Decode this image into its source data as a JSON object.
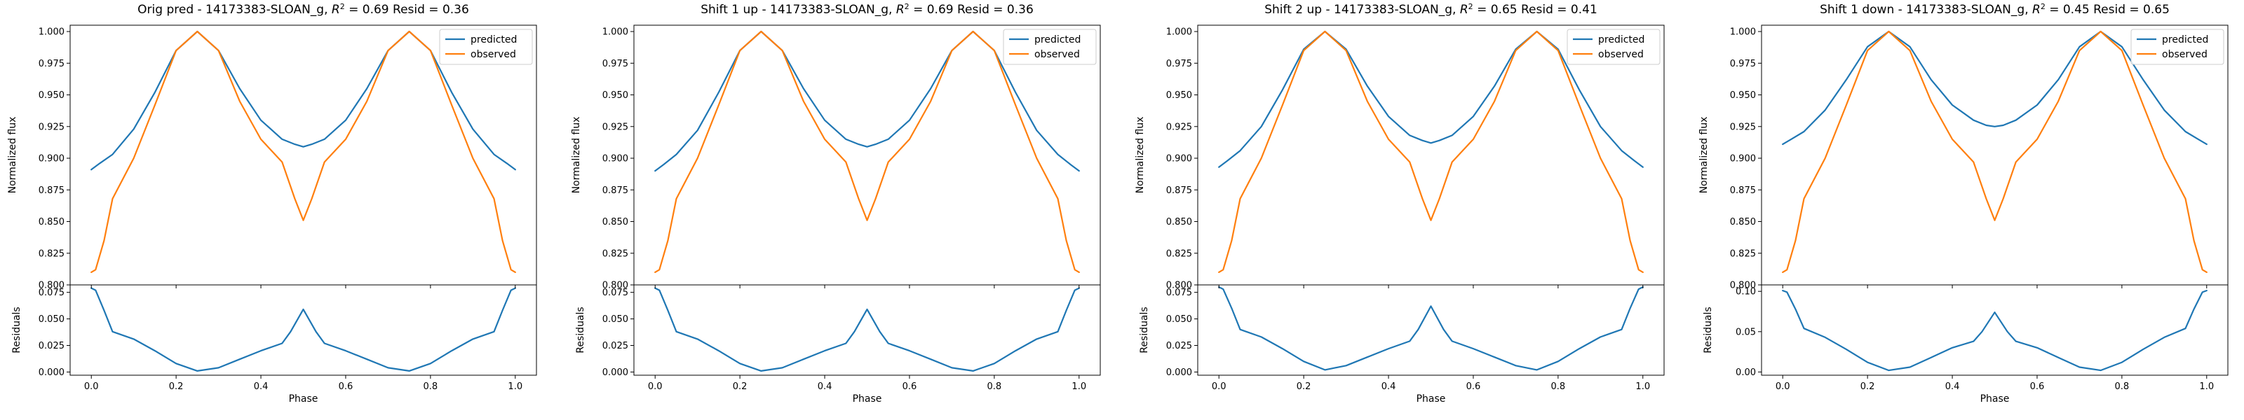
{
  "colors": {
    "predicted": "#1f77b4",
    "observed": "#ff7f0e"
  },
  "chart_data": [
    {
      "type": "line",
      "title": "Orig pred - 14173383-SLOAN_g, $R^2 = 0.69$ Resid = 0.36",
      "title_main": "Orig pred - 14173383-SLOAN_g, ",
      "title_r2_base": "R",
      "title_r2_exp": "2",
      "title_r2_value": " = 0.69",
      "title_resid": " Resid = 0.36",
      "top": {
        "ylabel": "Normalized flux",
        "ylim": [
          0.8,
          1.005
        ],
        "yticks": [
          "0.800",
          "0.825",
          "0.850",
          "0.875",
          "0.900",
          "0.925",
          "0.950",
          "0.975",
          "1.000"
        ],
        "legend": "upper right"
      },
      "bottom": {
        "ylabel": "Residuals",
        "xlabel": "Phase",
        "ylim": [
          -0.003,
          0.082
        ],
        "yticks": [
          "0.000",
          "0.025",
          "0.050",
          "0.075"
        ]
      },
      "xlim": [
        -0.05,
        1.05
      ],
      "xticks": [
        "0.0",
        "0.2",
        "0.4",
        "0.6",
        "0.8",
        "1.0"
      ],
      "series": [
        {
          "name": "predicted",
          "key": "predicted",
          "x": [
            0,
            0.02,
            0.05,
            0.1,
            0.15,
            0.2,
            0.25,
            0.3,
            0.35,
            0.4,
            0.45,
            0.48,
            0.5,
            0.52,
            0.55,
            0.6,
            0.65,
            0.7,
            0.75,
            0.8,
            0.85,
            0.9,
            0.95,
            0.98,
            1.0
          ],
          "y": [
            0.891,
            0.896,
            0.903,
            0.923,
            0.952,
            0.985,
            1.0,
            0.985,
            0.955,
            0.93,
            0.915,
            0.911,
            0.909,
            0.911,
            0.915,
            0.93,
            0.955,
            0.985,
            1.0,
            0.985,
            0.952,
            0.923,
            0.903,
            0.896,
            0.891
          ]
        },
        {
          "name": "observed",
          "key": "observed",
          "x": [
            0,
            0.01,
            0.03,
            0.05,
            0.1,
            0.15,
            0.2,
            0.25,
            0.3,
            0.35,
            0.4,
            0.45,
            0.48,
            0.5,
            0.52,
            0.55,
            0.6,
            0.65,
            0.7,
            0.75,
            0.8,
            0.85,
            0.9,
            0.95,
            0.97,
            0.99,
            1.0
          ],
          "y": [
            0.81,
            0.812,
            0.835,
            0.868,
            0.9,
            0.942,
            0.985,
            1.0,
            0.985,
            0.945,
            0.915,
            0.897,
            0.868,
            0.851,
            0.868,
            0.897,
            0.915,
            0.945,
            0.985,
            1.0,
            0.985,
            0.942,
            0.9,
            0.868,
            0.835,
            0.812,
            0.81
          ]
        },
        {
          "name": "residuals",
          "key": "predicted",
          "panel": "bottom",
          "x": [
            0,
            0.01,
            0.03,
            0.05,
            0.1,
            0.15,
            0.2,
            0.25,
            0.3,
            0.35,
            0.4,
            0.45,
            0.47,
            0.5,
            0.53,
            0.55,
            0.6,
            0.65,
            0.7,
            0.75,
            0.8,
            0.85,
            0.9,
            0.95,
            0.97,
            0.99,
            1.0
          ],
          "y": [
            0.079,
            0.077,
            0.058,
            0.038,
            0.031,
            0.02,
            0.008,
            0.001,
            0.004,
            0.012,
            0.02,
            0.027,
            0.038,
            0.059,
            0.038,
            0.027,
            0.02,
            0.012,
            0.004,
            0.001,
            0.008,
            0.02,
            0.031,
            0.038,
            0.058,
            0.077,
            0.079
          ]
        }
      ]
    },
    {
      "type": "line",
      "title": "Shift 1 up - 14173383-SLOAN_g, $R^2 = 0.69$ Resid = 0.36",
      "title_main": "Shift 1 up - 14173383-SLOAN_g, ",
      "title_r2_base": "R",
      "title_r2_exp": "2",
      "title_r2_value": " = 0.69",
      "title_resid": " Resid = 0.36",
      "top": {
        "ylabel": "Normalized flux",
        "ylim": [
          0.8,
          1.005
        ],
        "yticks": [
          "0.800",
          "0.825",
          "0.850",
          "0.875",
          "0.900",
          "0.925",
          "0.950",
          "0.975",
          "1.000"
        ],
        "legend": "upper right"
      },
      "bottom": {
        "ylabel": "Residuals",
        "xlabel": "Phase",
        "ylim": [
          -0.003,
          0.082
        ],
        "yticks": [
          "0.000",
          "0.025",
          "0.050",
          "0.075"
        ]
      },
      "xlim": [
        -0.05,
        1.05
      ],
      "xticks": [
        "0.0",
        "0.2",
        "0.4",
        "0.6",
        "0.8",
        "1.0"
      ],
      "series": [
        {
          "name": "predicted",
          "key": "predicted",
          "x": [
            0,
            0.02,
            0.05,
            0.1,
            0.15,
            0.2,
            0.25,
            0.3,
            0.35,
            0.4,
            0.45,
            0.48,
            0.5,
            0.52,
            0.55,
            0.6,
            0.65,
            0.7,
            0.75,
            0.8,
            0.85,
            0.9,
            0.95,
            0.98,
            1.0
          ],
          "y": [
            0.89,
            0.895,
            0.903,
            0.922,
            0.952,
            0.985,
            1.0,
            0.985,
            0.955,
            0.93,
            0.915,
            0.911,
            0.909,
            0.911,
            0.915,
            0.93,
            0.955,
            0.985,
            1.0,
            0.985,
            0.952,
            0.922,
            0.903,
            0.895,
            0.89
          ]
        },
        {
          "name": "observed",
          "key": "observed",
          "x": [
            0,
            0.01,
            0.03,
            0.05,
            0.1,
            0.15,
            0.2,
            0.25,
            0.3,
            0.35,
            0.4,
            0.45,
            0.48,
            0.5,
            0.52,
            0.55,
            0.6,
            0.65,
            0.7,
            0.75,
            0.8,
            0.85,
            0.9,
            0.95,
            0.97,
            0.99,
            1.0
          ],
          "y": [
            0.81,
            0.812,
            0.835,
            0.868,
            0.9,
            0.942,
            0.985,
            1.0,
            0.985,
            0.945,
            0.915,
            0.897,
            0.868,
            0.851,
            0.868,
            0.897,
            0.915,
            0.945,
            0.985,
            1.0,
            0.985,
            0.942,
            0.9,
            0.868,
            0.835,
            0.812,
            0.81
          ]
        },
        {
          "name": "residuals",
          "key": "predicted",
          "panel": "bottom",
          "x": [
            0,
            0.01,
            0.03,
            0.05,
            0.1,
            0.15,
            0.2,
            0.25,
            0.3,
            0.35,
            0.4,
            0.45,
            0.47,
            0.5,
            0.53,
            0.55,
            0.6,
            0.65,
            0.7,
            0.75,
            0.8,
            0.85,
            0.9,
            0.95,
            0.97,
            0.99,
            1.0
          ],
          "y": [
            0.079,
            0.077,
            0.058,
            0.038,
            0.031,
            0.02,
            0.008,
            0.001,
            0.004,
            0.012,
            0.02,
            0.027,
            0.038,
            0.059,
            0.038,
            0.027,
            0.02,
            0.012,
            0.004,
            0.001,
            0.008,
            0.02,
            0.031,
            0.038,
            0.058,
            0.077,
            0.079
          ]
        }
      ]
    },
    {
      "type": "line",
      "title": "Shift 2 up - 14173383-SLOAN_g, $R^2 = 0.65$ Resid = 0.41",
      "title_main": "Shift 2 up - 14173383-SLOAN_g, ",
      "title_r2_base": "R",
      "title_r2_exp": "2",
      "title_r2_value": " = 0.65",
      "title_resid": " Resid = 0.41",
      "top": {
        "ylabel": "Normalized flux",
        "ylim": [
          0.8,
          1.005
        ],
        "yticks": [
          "0.800",
          "0.825",
          "0.850",
          "0.875",
          "0.900",
          "0.925",
          "0.950",
          "0.975",
          "1.000"
        ],
        "legend": "upper right"
      },
      "bottom": {
        "ylabel": "Residuals",
        "xlabel": "Phase",
        "ylim": [
          -0.003,
          0.082
        ],
        "yticks": [
          "0.000",
          "0.025",
          "0.050",
          "0.075"
        ]
      },
      "xlim": [
        -0.05,
        1.05
      ],
      "xticks": [
        "0.0",
        "0.2",
        "0.4",
        "0.6",
        "0.8",
        "1.0"
      ],
      "series": [
        {
          "name": "predicted",
          "key": "predicted",
          "x": [
            0,
            0.02,
            0.05,
            0.1,
            0.15,
            0.2,
            0.25,
            0.3,
            0.35,
            0.4,
            0.45,
            0.48,
            0.5,
            0.52,
            0.55,
            0.6,
            0.65,
            0.7,
            0.75,
            0.8,
            0.85,
            0.9,
            0.95,
            0.98,
            1.0
          ],
          "y": [
            0.893,
            0.898,
            0.906,
            0.925,
            0.954,
            0.986,
            1.0,
            0.986,
            0.957,
            0.933,
            0.918,
            0.914,
            0.912,
            0.914,
            0.918,
            0.933,
            0.957,
            0.986,
            1.0,
            0.986,
            0.954,
            0.925,
            0.906,
            0.898,
            0.893
          ]
        },
        {
          "name": "observed",
          "key": "observed",
          "x": [
            0,
            0.01,
            0.03,
            0.05,
            0.1,
            0.15,
            0.2,
            0.25,
            0.3,
            0.35,
            0.4,
            0.45,
            0.48,
            0.5,
            0.52,
            0.55,
            0.6,
            0.65,
            0.7,
            0.75,
            0.8,
            0.85,
            0.9,
            0.95,
            0.97,
            0.99,
            1.0
          ],
          "y": [
            0.81,
            0.812,
            0.835,
            0.868,
            0.9,
            0.942,
            0.985,
            1.0,
            0.985,
            0.945,
            0.915,
            0.897,
            0.868,
            0.851,
            0.868,
            0.897,
            0.915,
            0.945,
            0.985,
            1.0,
            0.985,
            0.942,
            0.9,
            0.868,
            0.835,
            0.812,
            0.81
          ]
        },
        {
          "name": "residuals",
          "key": "predicted",
          "panel": "bottom",
          "x": [
            0,
            0.01,
            0.03,
            0.05,
            0.1,
            0.15,
            0.2,
            0.25,
            0.3,
            0.35,
            0.4,
            0.45,
            0.47,
            0.5,
            0.53,
            0.55,
            0.6,
            0.65,
            0.7,
            0.75,
            0.8,
            0.85,
            0.9,
            0.95,
            0.97,
            0.99,
            1.0
          ],
          "y": [
            0.08,
            0.078,
            0.06,
            0.04,
            0.033,
            0.022,
            0.01,
            0.002,
            0.006,
            0.014,
            0.022,
            0.029,
            0.04,
            0.062,
            0.04,
            0.029,
            0.022,
            0.014,
            0.006,
            0.002,
            0.01,
            0.022,
            0.033,
            0.04,
            0.06,
            0.078,
            0.08
          ]
        }
      ]
    },
    {
      "type": "line",
      "title": "Shift 1 down - 14173383-SLOAN_g, $R^2 = 0.45$ Resid = 0.65",
      "title_main": "Shift 1 down - 14173383-SLOAN_g, ",
      "title_r2_base": "R",
      "title_r2_exp": "2",
      "title_r2_value": " = 0.45",
      "title_resid": " Resid = 0.65",
      "top": {
        "ylabel": "Normalized flux",
        "ylim": [
          0.8,
          1.005
        ],
        "yticks": [
          "0.800",
          "0.825",
          "0.850",
          "0.875",
          "0.900",
          "0.925",
          "0.950",
          "0.975",
          "1.000"
        ],
        "legend": "upper right"
      },
      "bottom": {
        "ylabel": "Residuals",
        "xlabel": "Phase",
        "ylim": [
          -0.004,
          0.108
        ],
        "yticks": [
          "0.00",
          "0.05",
          "0.10"
        ]
      },
      "xlim": [
        -0.05,
        1.05
      ],
      "xticks": [
        "0.0",
        "0.2",
        "0.4",
        "0.6",
        "0.8",
        "1.0"
      ],
      "series": [
        {
          "name": "predicted",
          "key": "predicted",
          "x": [
            0,
            0.02,
            0.05,
            0.1,
            0.15,
            0.2,
            0.25,
            0.3,
            0.35,
            0.4,
            0.45,
            0.48,
            0.5,
            0.52,
            0.55,
            0.6,
            0.65,
            0.7,
            0.75,
            0.8,
            0.85,
            0.9,
            0.95,
            0.98,
            1.0
          ],
          "y": [
            0.911,
            0.915,
            0.921,
            0.938,
            0.962,
            0.988,
            1.0,
            0.988,
            0.962,
            0.942,
            0.93,
            0.926,
            0.925,
            0.926,
            0.93,
            0.942,
            0.962,
            0.988,
            1.0,
            0.988,
            0.962,
            0.938,
            0.921,
            0.915,
            0.911
          ]
        },
        {
          "name": "observed",
          "key": "observed",
          "x": [
            0,
            0.01,
            0.03,
            0.05,
            0.1,
            0.15,
            0.2,
            0.25,
            0.3,
            0.35,
            0.4,
            0.45,
            0.48,
            0.5,
            0.52,
            0.55,
            0.6,
            0.65,
            0.7,
            0.75,
            0.8,
            0.85,
            0.9,
            0.95,
            0.97,
            0.99,
            1.0
          ],
          "y": [
            0.81,
            0.812,
            0.835,
            0.868,
            0.9,
            0.942,
            0.985,
            1.0,
            0.985,
            0.945,
            0.915,
            0.897,
            0.868,
            0.851,
            0.868,
            0.897,
            0.915,
            0.945,
            0.985,
            1.0,
            0.985,
            0.942,
            0.9,
            0.868,
            0.835,
            0.812,
            0.81
          ]
        },
        {
          "name": "residuals",
          "key": "predicted",
          "panel": "bottom",
          "x": [
            0,
            0.01,
            0.03,
            0.05,
            0.1,
            0.15,
            0.2,
            0.25,
            0.3,
            0.35,
            0.4,
            0.45,
            0.47,
            0.5,
            0.53,
            0.55,
            0.6,
            0.65,
            0.7,
            0.75,
            0.8,
            0.85,
            0.9,
            0.95,
            0.97,
            0.99,
            1.0
          ],
          "y": [
            0.101,
            0.099,
            0.078,
            0.054,
            0.043,
            0.028,
            0.012,
            0.002,
            0.006,
            0.018,
            0.03,
            0.038,
            0.05,
            0.074,
            0.05,
            0.038,
            0.03,
            0.018,
            0.006,
            0.002,
            0.012,
            0.028,
            0.043,
            0.054,
            0.078,
            0.099,
            0.101
          ]
        }
      ]
    }
  ]
}
